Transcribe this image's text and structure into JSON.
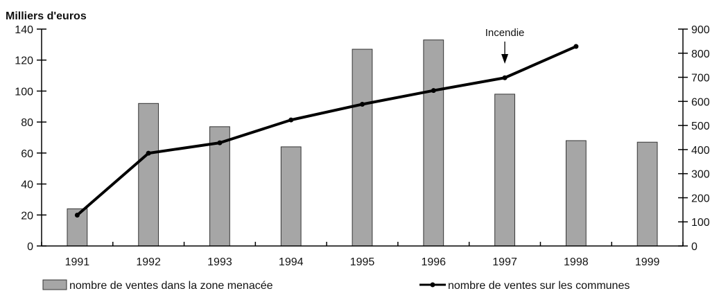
{
  "chart_data": {
    "type": "bar",
    "title": "Milliers d'euros",
    "categories": [
      "1991",
      "1992",
      "1993",
      "1994",
      "1995",
      "1996",
      "1997",
      "1998",
      "1999"
    ],
    "series": [
      {
        "name": "nombre de ventes dans la zone menacée",
        "type": "bar",
        "axis": "left",
        "values": [
          24,
          92,
          77,
          64,
          127,
          133,
          98,
          68,
          67
        ]
      },
      {
        "name": "nombre de ventes sur les communes",
        "type": "line",
        "axis": "right",
        "values": [
          128,
          385,
          428,
          523,
          588,
          645,
          698,
          828,
          null
        ]
      }
    ],
    "y_left": {
      "label": "Milliers d'euros",
      "ylim": [
        0,
        140
      ],
      "ticks": [
        0,
        20,
        40,
        60,
        80,
        100,
        120,
        140
      ]
    },
    "y_right": {
      "ylim": [
        0,
        900
      ],
      "ticks": [
        0,
        100,
        200,
        300,
        400,
        500,
        600,
        700,
        800,
        900
      ]
    },
    "annotation": {
      "text": "Incendie",
      "category": "1997"
    },
    "grid": false,
    "legend_position": "bottom",
    "colors": {
      "bar_fill": "#a6a6a6",
      "bar_stroke": "#333333",
      "line": "#000000",
      "axis": "#000000"
    }
  }
}
